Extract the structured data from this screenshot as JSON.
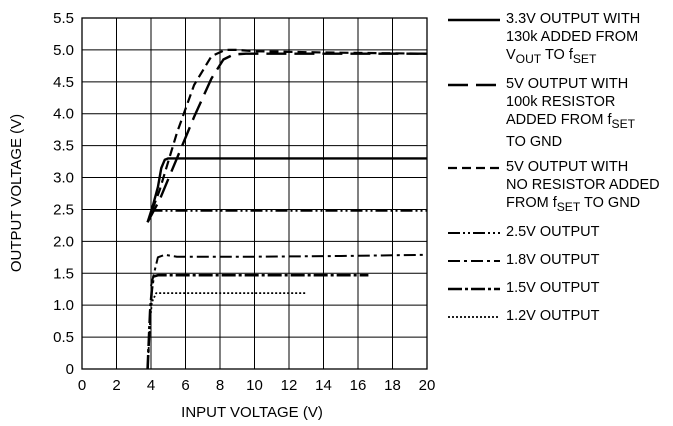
{
  "chart_data": {
    "type": "line",
    "xlabel": "INPUT VOLTAGE (V)",
    "ylabel": "OUTPUT VOLTAGE (V)",
    "xlim": [
      0,
      20
    ],
    "ylim": [
      0,
      5.5
    ],
    "xticks": [
      "0",
      "2",
      "4",
      "6",
      "8",
      "10",
      "12",
      "14",
      "16",
      "18",
      "20"
    ],
    "yticks": [
      "0",
      "0.5",
      "1.0",
      "1.5",
      "2.0",
      "2.5",
      "3.0",
      "3.5",
      "4.0",
      "4.5",
      "5.0",
      "5.5"
    ],
    "grid": true,
    "legend_position": "right",
    "series": [
      {
        "name": "3.3V OUTPUT WITH 130k ADDED FROM VOUT TO fSET",
        "style": "solid",
        "x": [
          3.8,
          4.1,
          4.4,
          4.6,
          4.8,
          5.0,
          6,
          10,
          15,
          20
        ],
        "y": [
          2.3,
          2.55,
          2.85,
          3.15,
          3.28,
          3.3,
          3.3,
          3.3,
          3.3,
          3.3
        ]
      },
      {
        "name": "5V OUTPUT WITH 100k RESISTOR ADDED FROM fSET TO GND",
        "style": "long-dash",
        "x": [
          3.8,
          4.5,
          5.5,
          6.5,
          7.5,
          8.2,
          8.8,
          9.5,
          12,
          16,
          20
        ],
        "y": [
          2.3,
          2.65,
          3.3,
          3.95,
          4.55,
          4.85,
          4.93,
          4.94,
          4.94,
          4.94,
          4.94
        ]
      },
      {
        "name": "5V OUTPUT WITH NO RESISTOR ADDED FROM fSET TO GND",
        "style": "short-dash",
        "x": [
          3.8,
          4.5,
          5.5,
          6.5,
          7.5,
          8.3,
          9.0,
          10,
          14,
          20
        ],
        "y": [
          2.3,
          2.8,
          3.7,
          4.45,
          4.9,
          5.0,
          5.0,
          4.98,
          4.96,
          4.94
        ]
      },
      {
        "name": "2.5V OUTPUT",
        "style": "dash-dot-dot",
        "x": [
          4.0,
          4.2,
          4.5,
          6,
          10,
          15,
          20
        ],
        "y": [
          2.45,
          2.48,
          2.48,
          2.48,
          2.48,
          2.48,
          2.48
        ]
      },
      {
        "name": "1.8V OUTPUT",
        "style": "dash-dot",
        "x": [
          4.0,
          4.4,
          4.8,
          5.5,
          7,
          10,
          15,
          20
        ],
        "y": [
          1.3,
          1.75,
          1.79,
          1.76,
          1.76,
          1.76,
          1.77,
          1.79
        ]
      },
      {
        "name": "1.5V OUTPUT",
        "style": "dash-dot-bold",
        "x": [
          3.8,
          3.95,
          4.05,
          4.15,
          4.4,
          8,
          12,
          16.6
        ],
        "y": [
          0.0,
          0.9,
          1.25,
          1.45,
          1.47,
          1.47,
          1.47,
          1.47
        ]
      },
      {
        "name": "1.2V OUTPUT",
        "style": "dotted",
        "x": [
          3.8,
          3.95,
          4.05,
          4.3,
          6,
          10,
          13
        ],
        "y": [
          0.0,
          0.75,
          1.05,
          1.19,
          1.19,
          1.19,
          1.19
        ]
      }
    ]
  },
  "legend": {
    "items": [
      {
        "lines": [
          "3.3V OUTPUT WITH",
          "130k ADDED FROM",
          "V<sub>OUT</sub> TO f<sub>SET</sub>"
        ],
        "style": "solid"
      },
      {
        "lines": [
          "5V OUTPUT WITH",
          "100k RESISTOR",
          "ADDED FROM f<sub>SET</sub>",
          "TO GND"
        ],
        "style": "long-dash"
      },
      {
        "lines": [
          "5V OUTPUT WITH",
          "NO RESISTOR ADDED",
          "FROM f<sub>SET</sub> TO GND"
        ],
        "style": "short-dash"
      },
      {
        "lines": [
          "2.5V OUTPUT"
        ],
        "style": "dash-dot-dot"
      },
      {
        "lines": [
          "1.8V OUTPUT"
        ],
        "style": "dash-dot"
      },
      {
        "lines": [
          "1.5V OUTPUT"
        ],
        "style": "dash-dot-bold"
      },
      {
        "lines": [
          "1.2V OUTPUT"
        ],
        "style": "dotted"
      }
    ]
  }
}
